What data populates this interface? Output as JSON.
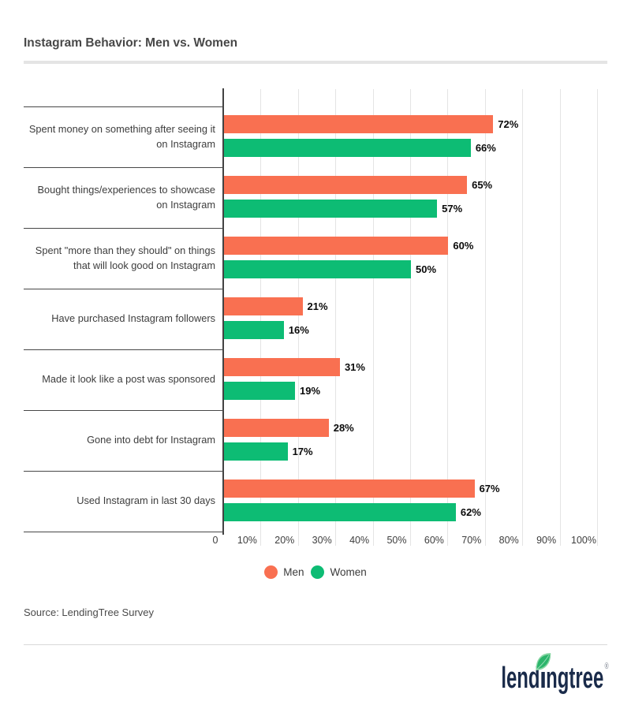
{
  "title": "Instagram Behavior: Men vs. Women",
  "source": "Source: LendingTree Survey",
  "logo": {
    "brand": "lendingtree",
    "text_pre": "lend",
    "text_post": "ngtree",
    "registered": "®"
  },
  "colors": {
    "men": "#F97051",
    "women": "#0DBC74",
    "grid": "#E4E4E4",
    "axis": "#434343",
    "logo_navy": "#1A2B4A",
    "leaf_green": "#2BB56B",
    "leaf_light": "#8BD7A6"
  },
  "chart_data": {
    "type": "bar",
    "orientation": "horizontal",
    "title": "Instagram Behavior: Men vs. Women",
    "categories": [
      "Spent money on something after seeing it\non Instagram",
      "Bought things/experiences to showcase\non Instagram",
      "Spent \"more than they should\" on things\nthat will look good on Instagram",
      "Have purchased Instagram followers",
      "Made it look like a post was sponsored",
      "Gone into debt for Instagram",
      "Used Instagram in last 30 days"
    ],
    "series": [
      {
        "name": "Men",
        "color": "#F97051",
        "values": [
          72,
          65,
          60,
          21,
          31,
          28,
          67
        ]
      },
      {
        "name": "Women",
        "color": "#0DBC74",
        "values": [
          66,
          57,
          50,
          16,
          19,
          17,
          62
        ]
      }
    ],
    "value_suffix": "%",
    "x_ticks": [
      "0",
      "10%",
      "20%",
      "30%",
      "40%",
      "50%",
      "60%",
      "70%",
      "80%",
      "90%",
      "100%"
    ],
    "xlim": [
      0,
      100
    ],
    "grid": true,
    "legend_position": "bottom"
  }
}
